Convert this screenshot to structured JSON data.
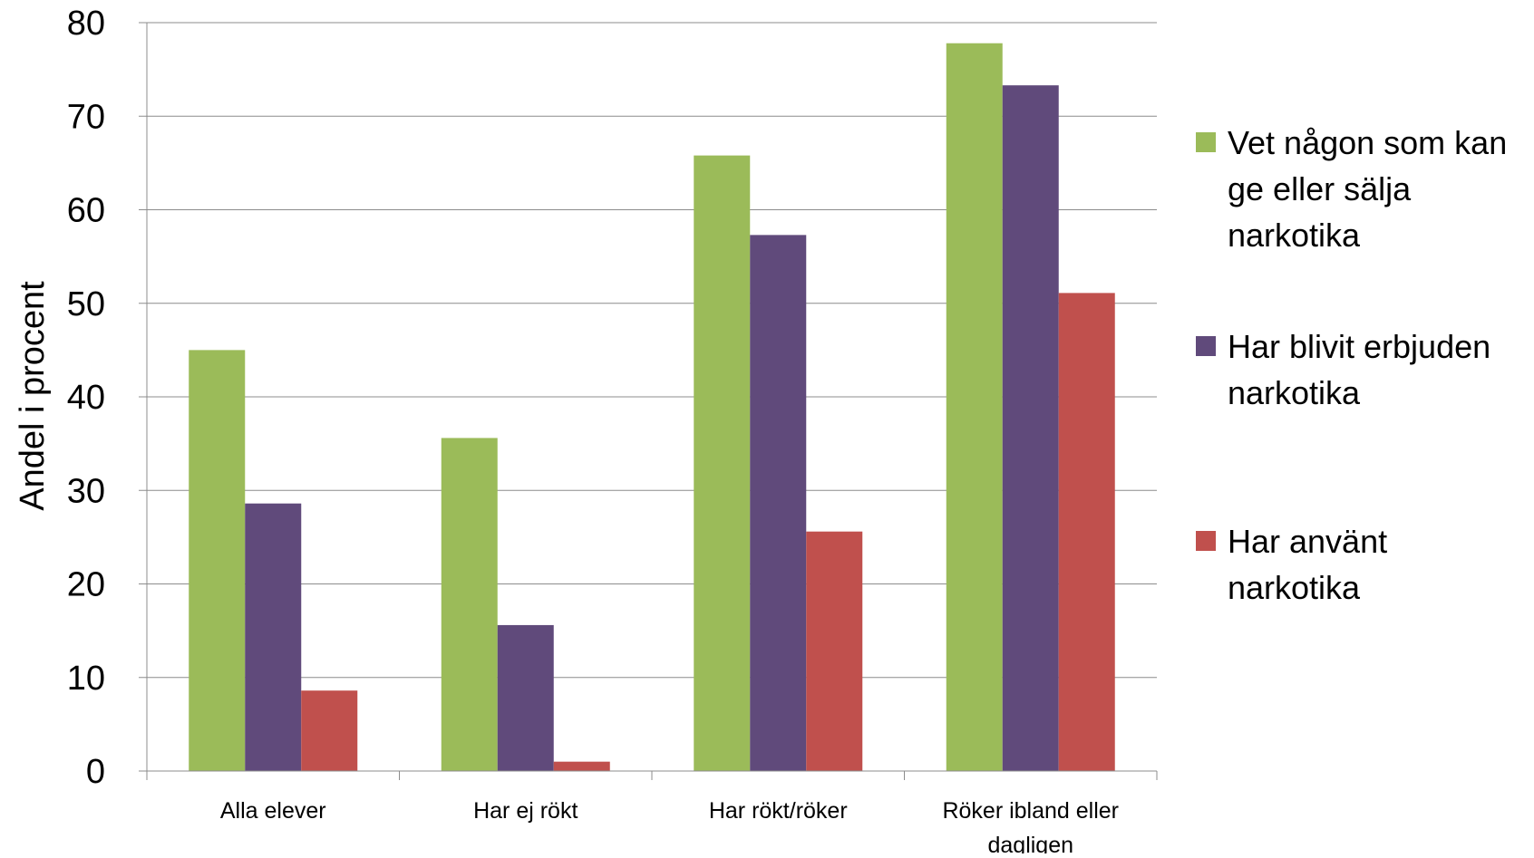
{
  "chart_data": {
    "type": "bar",
    "categories": [
      [
        "Alla elever"
      ],
      [
        "Har ej rökt"
      ],
      [
        "Har rökt/röker"
      ],
      [
        "Röker ibland eller",
        "dagligen"
      ]
    ],
    "series": [
      {
        "name": [
          "Vet någon som kan",
          "ge eller sälja",
          "narkotika"
        ],
        "values": [
          45,
          35.6,
          65.8,
          77.8
        ],
        "color": "#9BBB59"
      },
      {
        "name": [
          "Har blivit erbjuden",
          "narkotika"
        ],
        "values": [
          28.6,
          15.6,
          57.3,
          73.3
        ],
        "color": "#604A7B"
      },
      {
        "name": [
          "Har använt",
          "narkotika"
        ],
        "values": [
          8.6,
          1.0,
          25.6,
          51.1
        ],
        "color": "#C0504D"
      }
    ],
    "xlabel": "",
    "ylabel": "Andel i procent",
    "ylim": [
      0,
      80
    ],
    "yticks": [
      0,
      10,
      20,
      30,
      40,
      50,
      60,
      70,
      80
    ],
    "grid": true,
    "legend": "right"
  }
}
